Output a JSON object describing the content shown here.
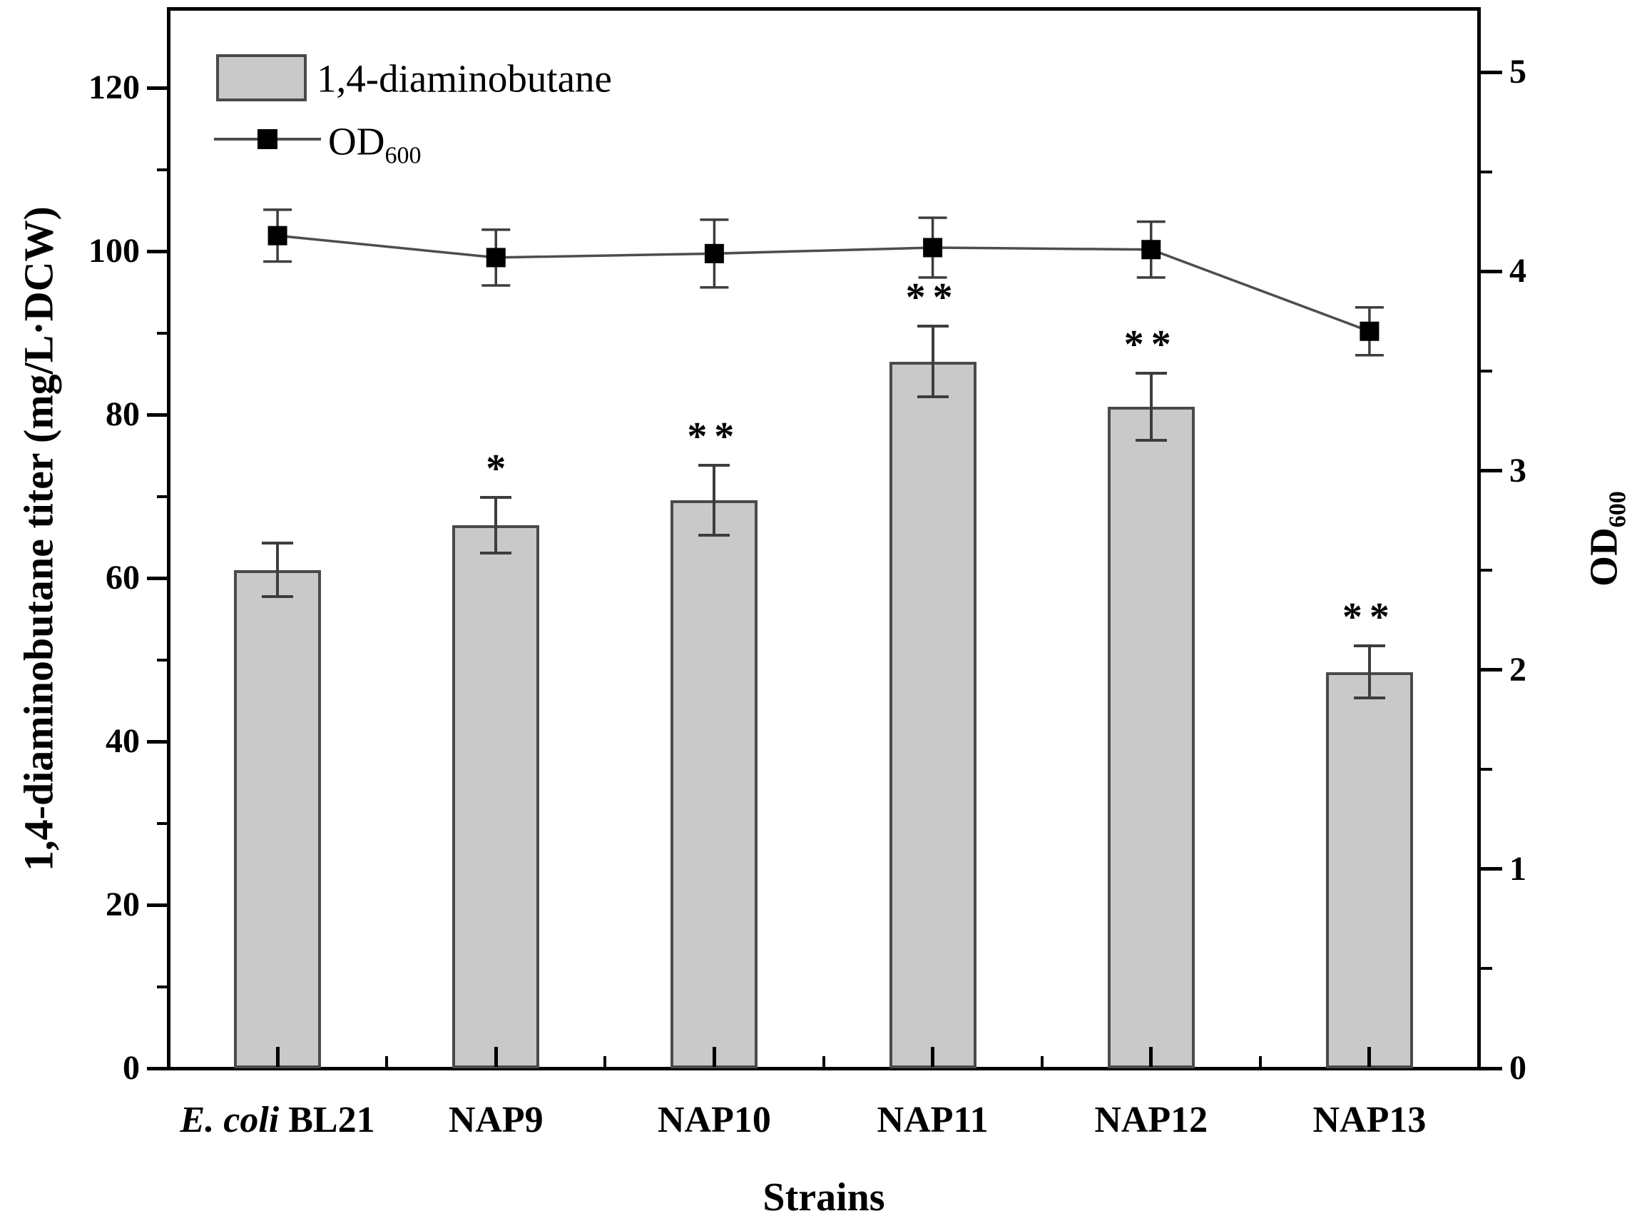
{
  "chart_data": {
    "type": "bar+line",
    "categories": [
      {
        "parts": [
          {
            "text": "E. coli",
            "italic": true
          },
          {
            "text": " BL21",
            "italic": false
          }
        ]
      },
      {
        "parts": [
          {
            "text": "NAP9",
            "italic": false
          }
        ]
      },
      {
        "parts": [
          {
            "text": "NAP10",
            "italic": false
          }
        ]
      },
      {
        "parts": [
          {
            "text": "NAP11",
            "italic": false
          }
        ]
      },
      {
        "parts": [
          {
            "text": "NAP12",
            "italic": false
          }
        ]
      },
      {
        "parts": [
          {
            "text": "NAP13",
            "italic": false
          }
        ]
      }
    ],
    "x_axis": {
      "title": "Strains"
    },
    "left_axis": {
      "title": "1,4-diaminobutane titer (mg/L·DCW)",
      "tick_values": [
        0,
        20,
        40,
        60,
        80,
        100,
        120
      ],
      "tick_labels": [
        "0",
        "20",
        "40",
        "60",
        "80",
        "100",
        "120"
      ],
      "range": [
        0,
        129.7
      ]
    },
    "right_axis": {
      "title": "OD",
      "title_sub": "600",
      "tick_values": [
        0,
        1,
        2,
        3,
        4,
        5
      ],
      "tick_labels": [
        "0",
        "1",
        "2",
        "3",
        "4",
        "5"
      ],
      "range": [
        0,
        5.32
      ]
    },
    "series": [
      {
        "name": "1,4-diaminobutane",
        "type": "bar",
        "axis": "left",
        "values": [
          61.0,
          66.5,
          69.5,
          86.5,
          81.0,
          48.5
        ],
        "errors": [
          3.3,
          3.4,
          4.3,
          4.3,
          4.1,
          3.2
        ],
        "significance": [
          "",
          "*",
          "**",
          "**",
          "**",
          "**"
        ]
      },
      {
        "name": "OD",
        "name_sub": "600",
        "type": "line",
        "axis": "right",
        "values": [
          4.18,
          4.07,
          4.09,
          4.12,
          4.11,
          3.7
        ],
        "errors": [
          0.13,
          0.14,
          0.17,
          0.15,
          0.14,
          0.12
        ]
      }
    ],
    "legend": {
      "items": [
        {
          "swatch": "bar",
          "label": "1,4-diaminobutane"
        },
        {
          "swatch": "line-marker",
          "label": "OD",
          "label_sub": "600"
        }
      ]
    },
    "colors": {
      "background": "#ffffff",
      "axis": "#000000",
      "text": "#000000",
      "bar_fill": "#c9c9c9",
      "bar_border": "#4a4a4a",
      "error_bar": "#3d3d3d",
      "line": "#4d4d4d",
      "marker": "#000000"
    }
  }
}
